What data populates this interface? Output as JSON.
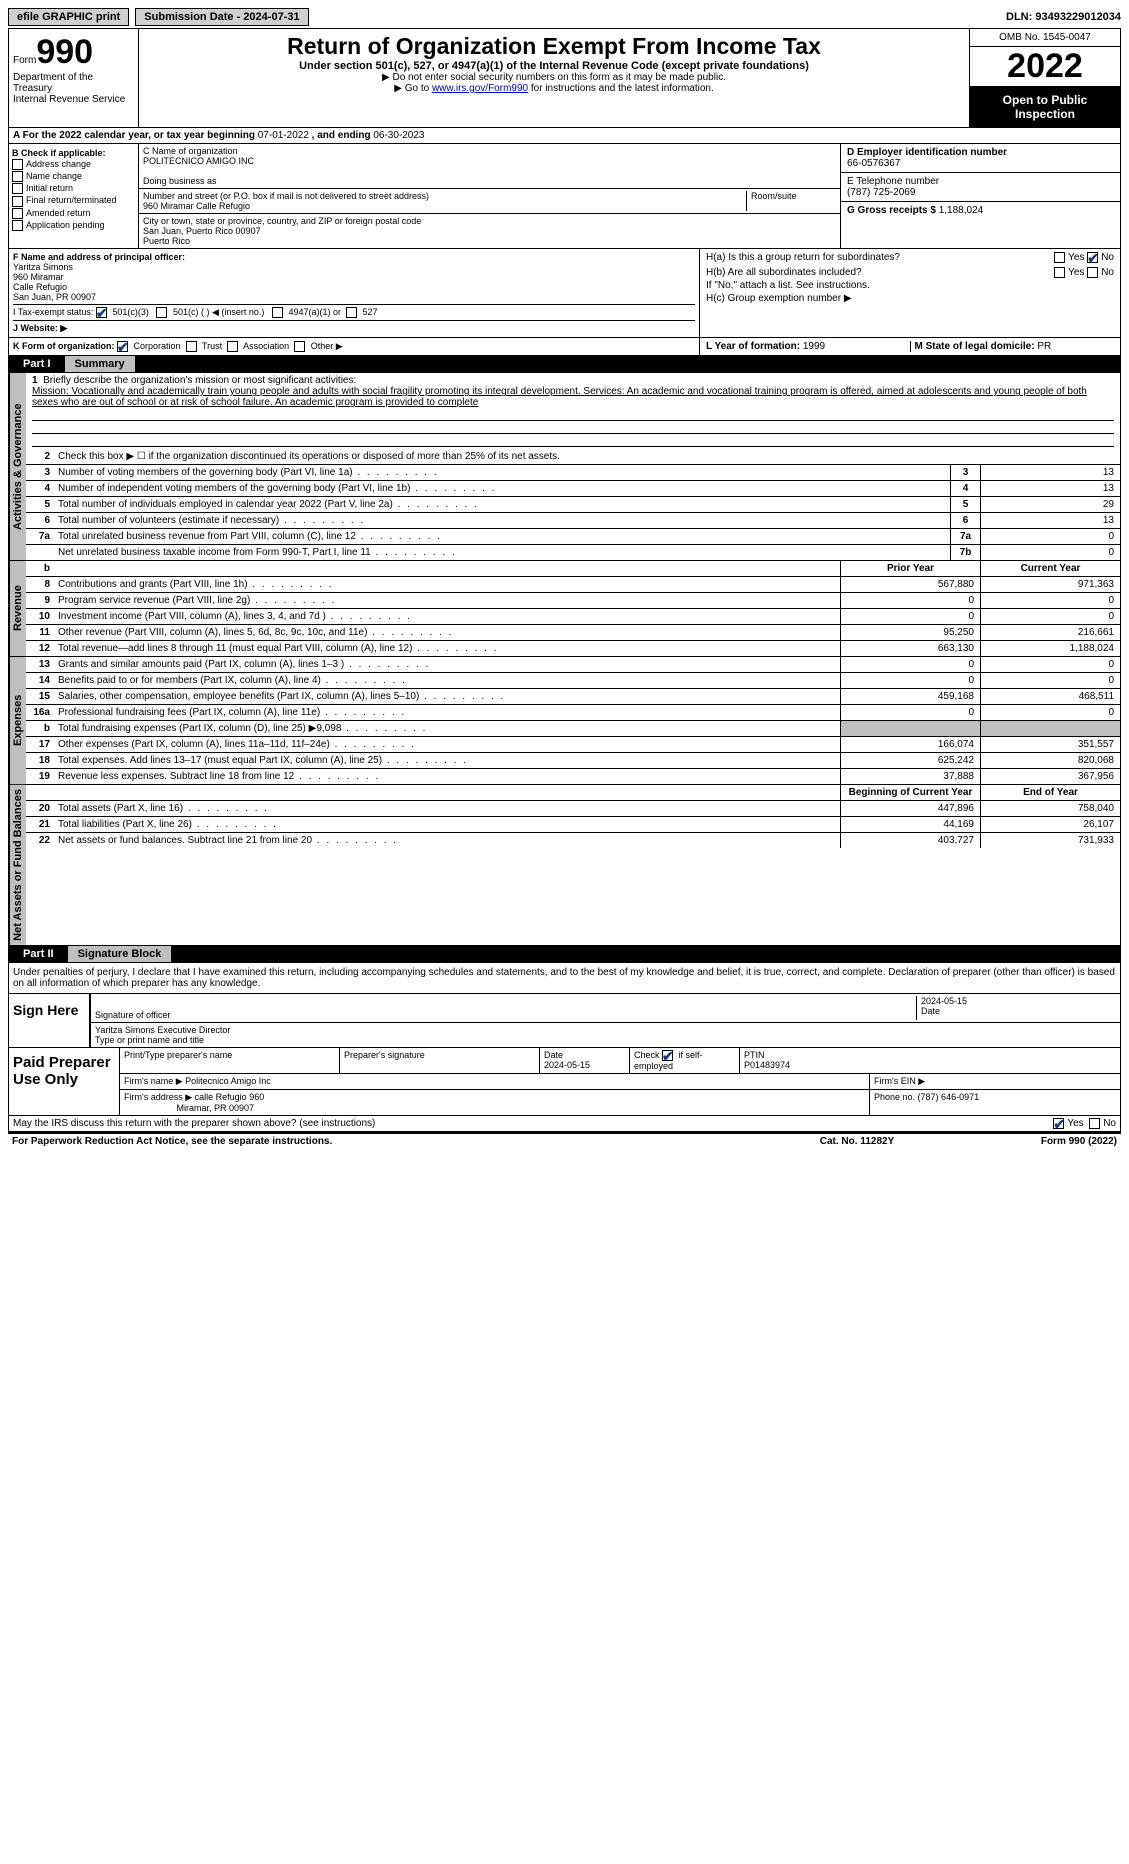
{
  "colors": {
    "accent": "#0a3d8f",
    "headerGray": "#bfbfbf",
    "link": "#0000cc"
  },
  "top": {
    "efile": "efile GRAPHIC print",
    "submission": "Submission Date - 2024-07-31",
    "dln": "DLN: 93493229012034"
  },
  "header": {
    "formWord": "Form",
    "formNum": "990",
    "dept": "Department of the Treasury",
    "irs": "Internal Revenue Service",
    "title": "Return of Organization Exempt From Income Tax",
    "sub": "Under section 501(c), 527, or 4947(a)(1) of the Internal Revenue Code (except private foundations)",
    "note1": "▶ Do not enter social security numbers on this form as it may be made public.",
    "note2_a": "▶ Go to ",
    "note2_link": "www.irs.gov/Form990",
    "note2_b": " for instructions and the latest information.",
    "omb": "OMB No. 1545-0047",
    "year": "2022",
    "open": "Open to Public Inspection"
  },
  "rowA": {
    "label": "A For the 2022 calendar year, or tax year beginning ",
    "begin": "07-01-2022",
    "mid": " , and ending ",
    "end": "06-30-2023"
  },
  "colB": {
    "title": "B Check if applicable:",
    "opts": [
      "Address change",
      "Name change",
      "Initial return",
      "Final return/terminated",
      "Amended return",
      "Application pending"
    ]
  },
  "colC": {
    "nameLbl": "C Name of organization",
    "name": "POLITECNICO AMIGO INC",
    "dba": "Doing business as",
    "addrLbl": "Number and street (or P.O. box if mail is not delivered to street address)",
    "addr": "960 Miramar Calle Refugio",
    "room": "Room/suite",
    "cityLbl": "City or town, state or province, country, and ZIP or foreign postal code",
    "city": "San Juan, Puerto Rico  00907",
    "country": "Puerto Rico"
  },
  "colD": {
    "einLbl": "D Employer identification number",
    "ein": "66-0576367",
    "telLbl": "E Telephone number",
    "tel": "(787) 725-2069",
    "grossLbl": "G Gross receipts $ ",
    "gross": "1,188,024"
  },
  "rowF": {
    "lbl": "F Name and address of principal officer:",
    "name": "Yaritza Simons",
    "l1": "960 Miramar",
    "l2": "Calle Refugio",
    "l3": "San Juan, PR  00907",
    "taxLbl": "I   Tax-exempt status:",
    "s1": "501(c)(3)",
    "s2": "501(c) (  ) ◀ (insert no.)",
    "s3": "4947(a)(1) or",
    "s4": "527",
    "web": "J   Website: ▶"
  },
  "rowH": {
    "ha": "H(a)  Is this a group return for subordinates?",
    "hb": "H(b)  Are all subordinates included?",
    "hbNote": "If \"No,\" attach a list. See instructions.",
    "hc": "H(c)  Group exemption number ▶",
    "yes": "Yes",
    "no": "No"
  },
  "rowK": {
    "k": "K Form of organization:",
    "opts": [
      "Corporation",
      "Trust",
      "Association",
      "Other ▶"
    ],
    "l": "L Year of formation: ",
    "lv": "1999",
    "m": "M State of legal domicile: ",
    "mv": "PR"
  },
  "part1": {
    "label": "Part I",
    "title": "Summary"
  },
  "summary": {
    "side1": "Activities & Governance",
    "l1": "Briefly describe the organization's mission or most significant activities:",
    "mission": "Mission: Vocationally and academically train young people and adults with social fragility promoting its integral development. Services: An academic and vocational training program is offered, aimed at adolescents and young people of both sexes who are out of school or at risk of school failure. An academic program is provided to complete",
    "l2": "Check this box ▶ ☐  if the organization discontinued its operations or disposed of more than 25% of its net assets.",
    "rows1": [
      {
        "n": "3",
        "t": "Number of voting members of the governing body (Part VI, line 1a)",
        "c": "3",
        "v": "13"
      },
      {
        "n": "4",
        "t": "Number of independent voting members of the governing body (Part VI, line 1b)",
        "c": "4",
        "v": "13"
      },
      {
        "n": "5",
        "t": "Total number of individuals employed in calendar year 2022 (Part V, line 2a)",
        "c": "5",
        "v": "29"
      },
      {
        "n": "6",
        "t": "Total number of volunteers (estimate if necessary)",
        "c": "6",
        "v": "13"
      },
      {
        "n": "7a",
        "t": "Total unrelated business revenue from Part VIII, column (C), line 12",
        "c": "7a",
        "v": "0"
      },
      {
        "n": "",
        "t": "Net unrelated business taxable income from Form 990-T, Part I, line 11",
        "c": "7b",
        "v": "0"
      }
    ],
    "side2": "Revenue",
    "hPrior": "Prior Year",
    "hCurr": "Current Year",
    "rev": [
      {
        "n": "8",
        "t": "Contributions and grants (Part VIII, line 1h)",
        "p": "567,880",
        "c": "971,363"
      },
      {
        "n": "9",
        "t": "Program service revenue (Part VIII, line 2g)",
        "p": "0",
        "c": "0"
      },
      {
        "n": "10",
        "t": "Investment income (Part VIII, column (A), lines 3, 4, and 7d )",
        "p": "0",
        "c": "0"
      },
      {
        "n": "11",
        "t": "Other revenue (Part VIII, column (A), lines 5, 6d, 8c, 9c, 10c, and 11e)",
        "p": "95,250",
        "c": "216,661"
      },
      {
        "n": "12",
        "t": "Total revenue—add lines 8 through 11 (must equal Part VIII, column (A), line 12)",
        "p": "663,130",
        "c": "1,188,024"
      }
    ],
    "side3": "Expenses",
    "exp": [
      {
        "n": "13",
        "t": "Grants and similar amounts paid (Part IX, column (A), lines 1–3 )",
        "p": "0",
        "c": "0"
      },
      {
        "n": "14",
        "t": "Benefits paid to or for members (Part IX, column (A), line 4)",
        "p": "0",
        "c": "0"
      },
      {
        "n": "15",
        "t": "Salaries, other compensation, employee benefits (Part IX, column (A), lines 5–10)",
        "p": "459,168",
        "c": "468,511"
      },
      {
        "n": "16a",
        "t": "Professional fundraising fees (Part IX, column (A), line 11e)",
        "p": "0",
        "c": "0"
      },
      {
        "n": "b",
        "t": "Total fundraising expenses (Part IX, column (D), line 25) ▶9,098",
        "p": "",
        "c": "",
        "gray": true
      },
      {
        "n": "17",
        "t": "Other expenses (Part IX, column (A), lines 11a–11d, 11f–24e)",
        "p": "166,074",
        "c": "351,557"
      },
      {
        "n": "18",
        "t": "Total expenses. Add lines 13–17 (must equal Part IX, column (A), line 25)",
        "p": "625,242",
        "c": "820,068"
      },
      {
        "n": "19",
        "t": "Revenue less expenses. Subtract line 18 from line 12",
        "p": "37,888",
        "c": "367,956"
      }
    ],
    "side4": "Net Assets or Fund Balances",
    "hBeg": "Beginning of Current Year",
    "hEnd": "End of Year",
    "net": [
      {
        "n": "20",
        "t": "Total assets (Part X, line 16)",
        "p": "447,896",
        "c": "758,040"
      },
      {
        "n": "21",
        "t": "Total liabilities (Part X, line 26)",
        "p": "44,169",
        "c": "26,107"
      },
      {
        "n": "22",
        "t": "Net assets or fund balances. Subtract line 21 from line 20",
        "p": "403,727",
        "c": "731,933"
      }
    ]
  },
  "part2": {
    "label": "Part II",
    "title": "Signature Block"
  },
  "sig": {
    "decl": "Under penalties of perjury, I declare that I have examined this return, including accompanying schedules and statements, and to the best of my knowledge and belief, it is true, correct, and complete. Declaration of preparer (other than officer) is based on all information of which preparer has any knowledge.",
    "sign": "Sign Here",
    "sigOf": "Signature of officer",
    "date": "2024-05-15",
    "dateLbl": "Date",
    "nameTitle": "Yaritza Simons  Executive Director",
    "typeLbl": "Type or print name and title"
  },
  "prep": {
    "title": "Paid Preparer Use Only",
    "h1": "Print/Type preparer's name",
    "h2": "Preparer's signature",
    "h3": "Date",
    "h3v": "2024-05-15",
    "h4a": "Check",
    "h4b": "if self-employed",
    "h5": "PTIN",
    "h5v": "P01483974",
    "firmLbl": "Firm's name    ▶ ",
    "firm": "Politecnico Amigo Inc",
    "einLbl": "Firm's EIN ▶",
    "addrLbl": "Firm's address ▶ ",
    "addr1": "calle Refugio 960",
    "addr2": "Miramar, PR  00907",
    "phoneLbl": "Phone no. ",
    "phone": "(787) 646-0971"
  },
  "foot": {
    "q": "May the IRS discuss this return with the preparer shown above? (see instructions)",
    "yes": "Yes",
    "no": "No",
    "pra": "For Paperwork Reduction Act Notice, see the separate instructions.",
    "cat": "Cat. No. 11282Y",
    "form": "Form 990 (2022)"
  }
}
